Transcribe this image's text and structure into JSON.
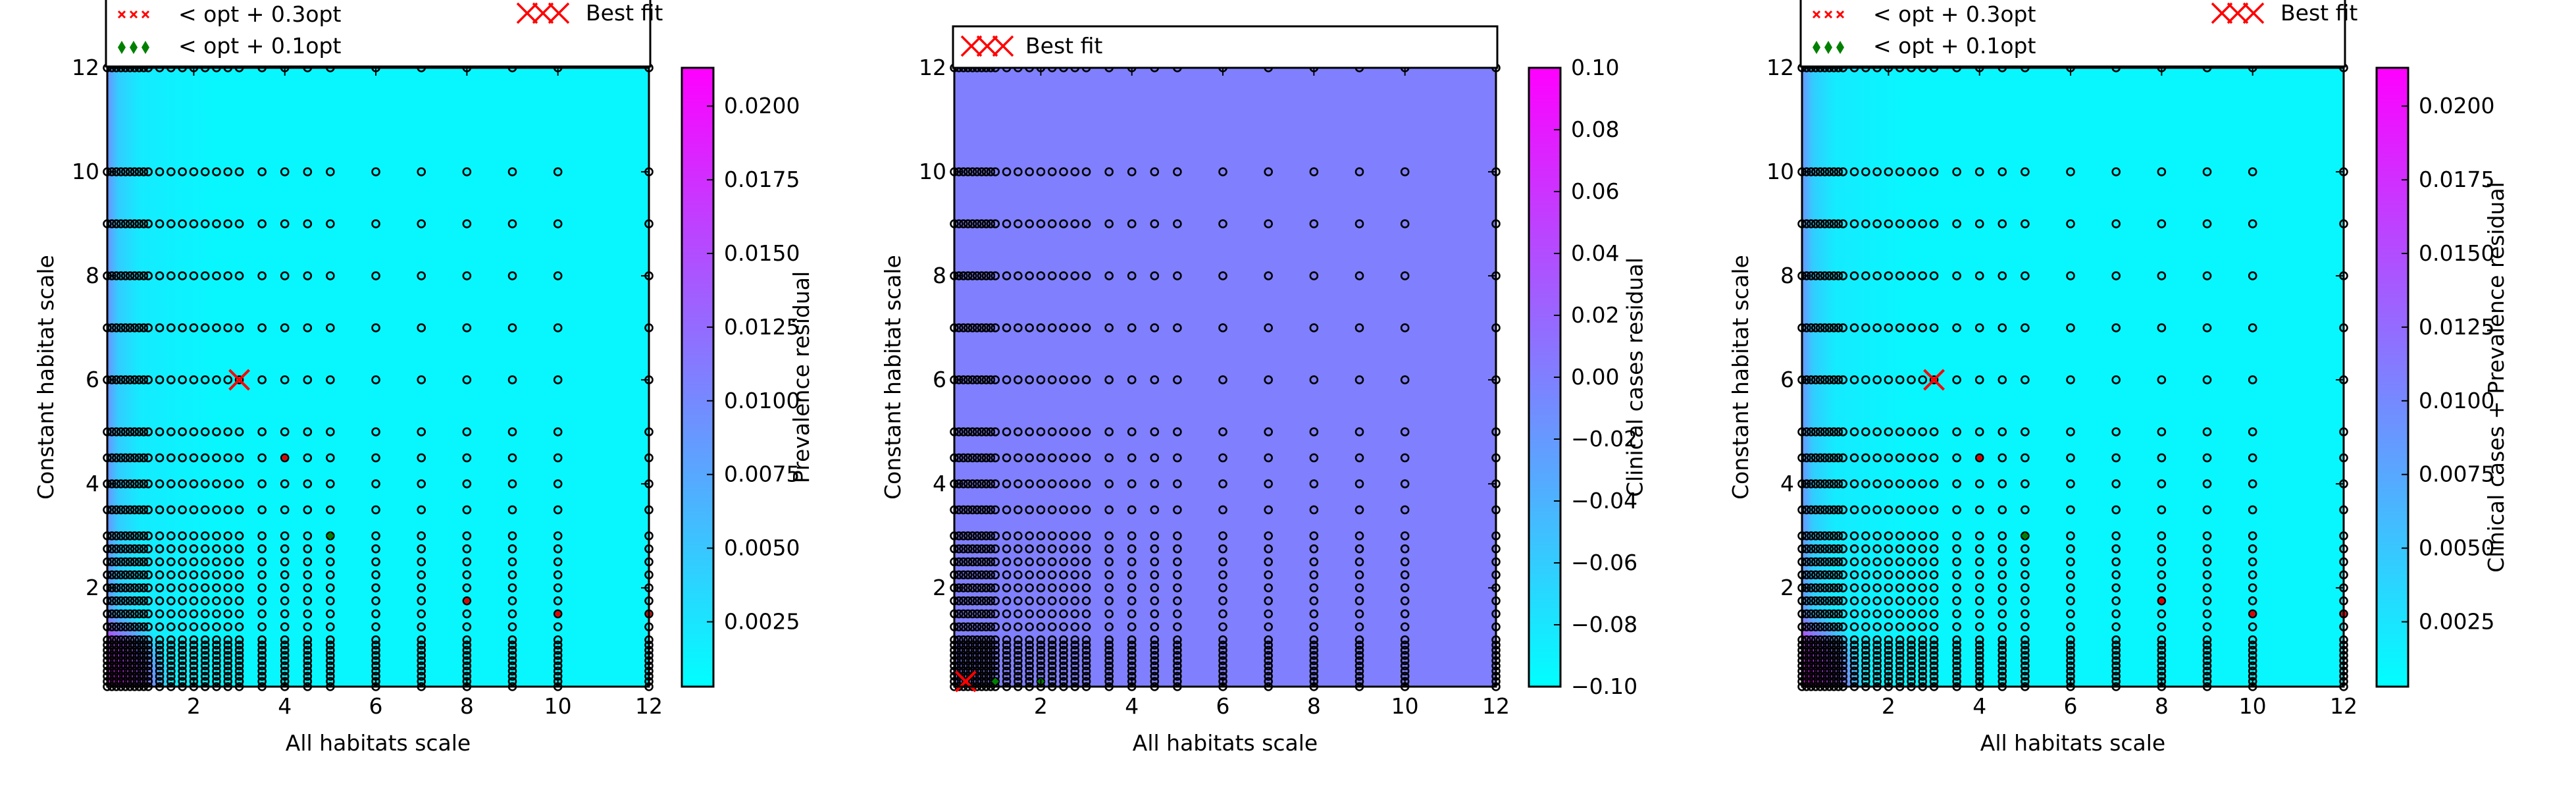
{
  "chart_data": [
    {
      "type": "heatmap",
      "xlabel": "All habitats scale",
      "ylabel": "Constant habitat scale",
      "xticks": [
        2,
        4,
        6,
        8,
        10,
        12
      ],
      "yticks": [
        2,
        4,
        6,
        8,
        10,
        12
      ],
      "xlim": [
        0.1,
        12
      ],
      "ylim": [
        0.1,
        12
      ],
      "colorbar": {
        "label": "Prevalence residual",
        "range": [
          0.0003,
          0.0213
        ],
        "ticks": [
          "0.0025",
          "0.0050",
          "0.0075",
          "0.0100",
          "0.0125",
          "0.0150",
          "0.0175",
          "0.0200"
        ],
        "tick_values": [
          0.0025,
          0.005,
          0.0075,
          0.01,
          0.0125,
          0.015,
          0.0175,
          0.02
        ]
      },
      "colormap": [
        "#00ffff",
        "#ff00ff"
      ],
      "background_level": 0.03,
      "hot_region": "bottom-left",
      "legend": {
        "placement": "above-plot",
        "entries": [
          {
            "label": "< opt + 0.3opt",
            "marker": "red-x"
          },
          {
            "label": "< opt + 0.1opt",
            "marker": "green-diamond"
          },
          {
            "label": "Best fit",
            "marker": "big-red-x"
          }
        ]
      },
      "best_fit": {
        "x": 3,
        "y": 6
      },
      "near_opt_03": [
        [
          4,
          4.5
        ],
        [
          8,
          1.75
        ],
        [
          10,
          1.5
        ],
        [
          12,
          1.5
        ]
      ],
      "near_opt_01": [
        [
          5,
          3
        ]
      ]
    },
    {
      "type": "heatmap",
      "xlabel": "All habitats scale",
      "ylabel": "Constant habitat scale",
      "xticks": [
        2,
        4,
        6,
        8,
        10,
        12
      ],
      "yticks": [
        2,
        4,
        6,
        8,
        10,
        12
      ],
      "xlim": [
        0.1,
        12
      ],
      "ylim": [
        0.1,
        12
      ],
      "colorbar": {
        "label": "Clinical cases residual",
        "range": [
          -0.1,
          0.1
        ],
        "ticks": [
          "−0.10",
          "−0.08",
          "−0.06",
          "−0.04",
          "−0.02",
          "0.00",
          "0.02",
          "0.04",
          "0.06",
          "0.08",
          "0.10"
        ],
        "tick_values": [
          -0.1,
          -0.08,
          -0.06,
          -0.04,
          -0.02,
          0,
          0.02,
          0.04,
          0.06,
          0.08,
          0.1
        ]
      },
      "colormap": [
        "#00ffff",
        "#ff00ff"
      ],
      "background_level": 0.5,
      "legend": {
        "placement": "above-plot",
        "entries": [
          {
            "label": "Best fit",
            "marker": "big-red-x"
          }
        ]
      },
      "best_fit": {
        "x": 0.35,
        "y": 0.2
      },
      "near_opt_03": [],
      "near_opt_01": [
        [
          1,
          0.2
        ],
        [
          2,
          0.2
        ]
      ]
    },
    {
      "type": "heatmap",
      "xlabel": "All habitats scale",
      "ylabel": "Constant habitat scale",
      "xticks": [
        2,
        4,
        6,
        8,
        10,
        12
      ],
      "yticks": [
        2,
        4,
        6,
        8,
        10,
        12
      ],
      "xlim": [
        0.1,
        12
      ],
      "ylim": [
        0.1,
        12
      ],
      "colorbar": {
        "label": "Clinical cases + Prevalence residual",
        "range": [
          0.0003,
          0.0213
        ],
        "ticks": [
          "0.0025",
          "0.0050",
          "0.0075",
          "0.0100",
          "0.0125",
          "0.0150",
          "0.0175",
          "0.0200"
        ],
        "tick_values": [
          0.0025,
          0.005,
          0.0075,
          0.01,
          0.0125,
          0.015,
          0.0175,
          0.02
        ]
      },
      "colormap": [
        "#00ffff",
        "#ff00ff"
      ],
      "background_level": 0.03,
      "hot_region": "bottom-left",
      "legend": {
        "placement": "above-plot",
        "entries": [
          {
            "label": "< opt + 0.3opt",
            "marker": "red-x"
          },
          {
            "label": "< opt + 0.1opt",
            "marker": "green-diamond"
          },
          {
            "label": "Best fit",
            "marker": "big-red-x"
          }
        ]
      },
      "best_fit": {
        "x": 3,
        "y": 6
      },
      "near_opt_03": [
        [
          4,
          4.5
        ],
        [
          8,
          1.75
        ],
        [
          10,
          1.5
        ],
        [
          12,
          1.5
        ]
      ],
      "near_opt_01": [
        [
          5,
          3
        ]
      ]
    }
  ],
  "sample_grid": {
    "x": [
      0.1,
      0.2,
      0.3,
      0.4,
      0.5,
      0.6,
      0.7,
      0.8,
      0.9,
      1.0,
      1.25,
      1.5,
      1.75,
      2.0,
      2.25,
      2.5,
      2.75,
      3.0,
      3.5,
      4.0,
      4.5,
      5.0,
      6.0,
      7.0,
      8.0,
      9.0,
      10.0,
      12.0
    ],
    "y": [
      0.1,
      0.2,
      0.3,
      0.4,
      0.5,
      0.6,
      0.7,
      0.8,
      0.9,
      1.0,
      1.25,
      1.5,
      1.75,
      2.0,
      2.25,
      2.5,
      2.75,
      3.0,
      3.5,
      4.0,
      4.5,
      5.0,
      6.0,
      7.0,
      8.0,
      9.0,
      10.0,
      12.0
    ],
    "y_limit_for_x_above_10": 10
  }
}
